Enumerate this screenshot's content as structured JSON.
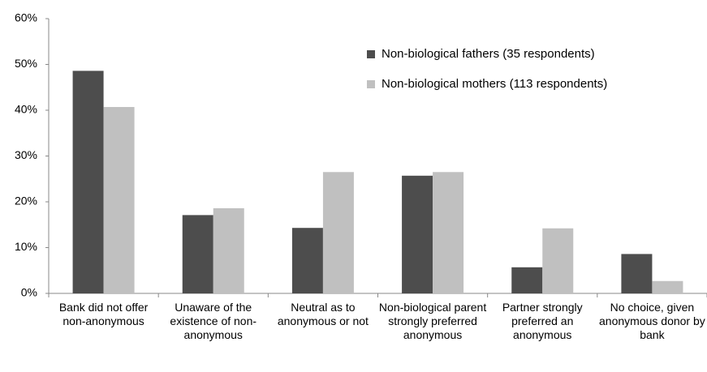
{
  "chart_data": {
    "type": "bar",
    "categories": [
      "Bank did not offer non-anonymous",
      "Unaware of the existence of non-anonymous",
      "Neutral as to anonymous or not",
      "Non-biological parent strongly preferred anonymous",
      "Partner strongly preferred an anonymous",
      "No choice, given anonymous donor by bank"
    ],
    "series": [
      {
        "name": "Non-biological fathers (35 respondents)",
        "color": "#4d4d4d",
        "values": [
          48.6,
          17.1,
          14.3,
          25.7,
          5.7,
          8.6
        ]
      },
      {
        "name": "Non-biological mothers (113 respondents)",
        "color": "#c0c0c0",
        "values": [
          40.7,
          18.6,
          26.5,
          26.5,
          14.2,
          2.7
        ]
      }
    ],
    "ylim": [
      0,
      60
    ],
    "yticks": [
      {
        "value": 0,
        "label": "0%"
      },
      {
        "value": 10,
        "label": "10%"
      },
      {
        "value": 20,
        "label": "20%"
      },
      {
        "value": 30,
        "label": "30%"
      },
      {
        "value": 40,
        "label": "40%"
      },
      {
        "value": 50,
        "label": "50%"
      },
      {
        "value": 60,
        "label": "60%"
      }
    ],
    "grid": false
  }
}
